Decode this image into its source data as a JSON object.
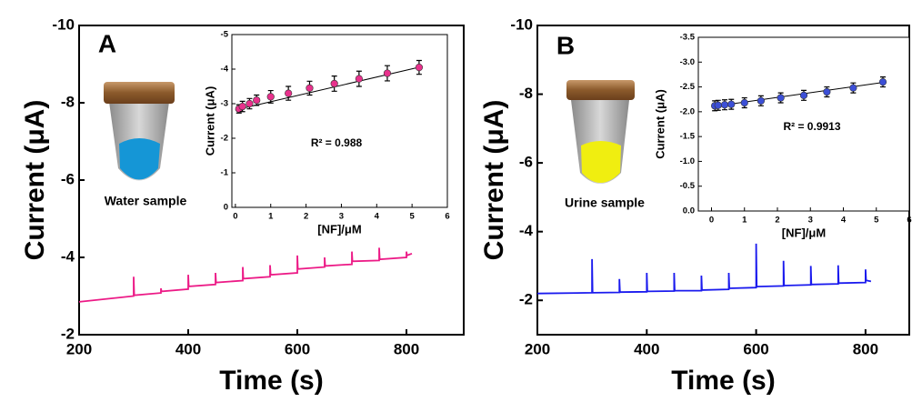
{
  "chart_data": [
    {
      "type": "line",
      "panel_label": "A",
      "annotation": "Water sample",
      "xlabel": "Time (s)",
      "ylabel": "Current (μA)",
      "xlim": [
        200,
        905
      ],
      "xticks": [
        200,
        400,
        600,
        800
      ],
      "ylim": [
        -2,
        -10
      ],
      "yticks": [
        -10,
        -8,
        -6,
        -4,
        -2
      ],
      "series": [
        {
          "color": "#ec1a86",
          "x": [
            200,
            300,
            300,
            301,
            350,
            350,
            351,
            400,
            400,
            401,
            450,
            450,
            451,
            500,
            500,
            501,
            550,
            550,
            551,
            600,
            600,
            601,
            650,
            650,
            651,
            700,
            700,
            701,
            750,
            750,
            751,
            800,
            800,
            801,
            810
          ],
          "values": [
            -2.85,
            -3.0,
            -3.5,
            -3.02,
            -3.08,
            -3.2,
            -3.12,
            -3.18,
            -3.55,
            -3.25,
            -3.3,
            -3.6,
            -3.35,
            -3.4,
            -3.75,
            -3.45,
            -3.5,
            -3.8,
            -3.55,
            -3.6,
            -4.05,
            -3.7,
            -3.75,
            -4.0,
            -3.78,
            -3.82,
            -4.15,
            -3.9,
            -3.92,
            -4.25,
            -3.95,
            -4.0,
            -4.15,
            -4.05,
            -4.1
          ]
        }
      ]
    },
    {
      "type": "scatter",
      "annotation": "R² = 0.988",
      "xlabel": "[NF]/μM",
      "ylabel": "Current (μA)",
      "xlim": [
        -0.1,
        6
      ],
      "xticks": [
        0,
        1,
        2,
        3,
        4,
        5,
        6
      ],
      "ylim": [
        0,
        -5
      ],
      "yticks": [
        -5,
        -4,
        -3,
        -2,
        -1,
        0
      ],
      "color": "#e8318c",
      "x": [
        0.1,
        0.2,
        0.4,
        0.6,
        1.0,
        1.5,
        2.1,
        2.8,
        3.5,
        4.3,
        5.2
      ],
      "values": [
        -2.85,
        -2.92,
        -3.0,
        -3.1,
        -3.2,
        -3.3,
        -3.45,
        -3.58,
        -3.72,
        -3.88,
        -4.05
      ],
      "errors": [
        0.12,
        0.15,
        0.15,
        0.15,
        0.18,
        0.2,
        0.2,
        0.22,
        0.22,
        0.22,
        0.2
      ],
      "fit": {
        "x": [
          0,
          5.3
        ],
        "values": [
          -2.82,
          -4.08
        ]
      }
    },
    {
      "type": "line",
      "panel_label": "B",
      "annotation": "Urine sample",
      "xlabel": "Time (s)",
      "ylabel": "Current (μA)",
      "xlim": [
        200,
        880
      ],
      "xticks": [
        200,
        400,
        600,
        800
      ],
      "ylim": [
        -1,
        -10
      ],
      "yticks": [
        -10,
        -8,
        -6,
        -4,
        -2
      ],
      "series": [
        {
          "color": "#1a1aee",
          "x": [
            200,
            300,
            300,
            301,
            350,
            350,
            351,
            400,
            400,
            401,
            450,
            450,
            451,
            500,
            500,
            501,
            550,
            550,
            551,
            600,
            600,
            601,
            650,
            650,
            651,
            700,
            700,
            701,
            750,
            750,
            751,
            800,
            800,
            801,
            810
          ],
          "values": [
            -2.2,
            -2.22,
            -3.2,
            -2.22,
            -2.23,
            -2.62,
            -2.24,
            -2.25,
            -2.8,
            -2.26,
            -2.27,
            -2.8,
            -2.28,
            -2.28,
            -2.72,
            -2.3,
            -2.32,
            -2.8,
            -2.35,
            -2.37,
            -3.65,
            -2.4,
            -2.42,
            -3.15,
            -2.43,
            -2.45,
            -3.0,
            -2.46,
            -2.48,
            -3.02,
            -2.5,
            -2.52,
            -2.9,
            -2.58,
            -2.55
          ]
        }
      ]
    },
    {
      "type": "scatter",
      "annotation": "R² = 0.9913",
      "xlabel": "[NF]/μM",
      "ylabel": "Current (μA)",
      "xlim": [
        -0.4,
        6
      ],
      "xticks": [
        0,
        1,
        2,
        3,
        4,
        5,
        6
      ],
      "ylim": [
        0,
        -3.5
      ],
      "yticks": [
        {
          "value": -3.5,
          "label": "-3.5"
        },
        {
          "value": -3,
          "label": "-3.0"
        },
        {
          "value": -2.5,
          "label": "-2.5"
        },
        {
          "value": -2,
          "label": "-2.0"
        },
        {
          "value": -1.5,
          "label": "-1.5"
        },
        {
          "value": -1,
          "label": "-1.0"
        },
        {
          "value": -0.5,
          "label": "-0.5"
        },
        {
          "value": 0,
          "label": "0.0"
        }
      ],
      "color": "#3c4fd6",
      "x": [
        0.1,
        0.2,
        0.4,
        0.6,
        1.0,
        1.5,
        2.1,
        2.8,
        3.5,
        4.3,
        5.2
      ],
      "values": [
        -2.12,
        -2.13,
        -2.14,
        -2.15,
        -2.18,
        -2.22,
        -2.28,
        -2.33,
        -2.4,
        -2.48,
        -2.6
      ],
      "errors": [
        0.1,
        0.1,
        0.1,
        0.1,
        0.1,
        0.1,
        0.1,
        0.1,
        0.1,
        0.1,
        0.1
      ],
      "fit": {
        "x": [
          0,
          5.3
        ],
        "values": [
          -2.1,
          -2.6
        ]
      }
    }
  ]
}
